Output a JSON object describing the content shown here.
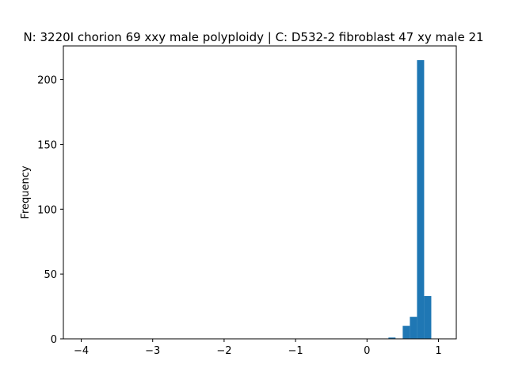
{
  "chart_data": {
    "type": "histogram",
    "title": "N: 3220I chorion 69 xxy male polyploidy | C: D532-2 fibroblast 47 xy male 21",
    "xlabel": "",
    "ylabel": "Frequency",
    "xlim": [
      -4.25,
      1.25
    ],
    "ylim": [
      0,
      226
    ],
    "xticks": [
      -4,
      -3,
      -2,
      -1,
      0,
      1
    ],
    "xtick_labels": [
      "−4",
      "−3",
      "−2",
      "−1",
      "0",
      "1"
    ],
    "yticks": [
      0,
      50,
      100,
      150,
      200
    ],
    "ytick_labels": [
      "0",
      "50",
      "100",
      "150",
      "200"
    ],
    "grid": false,
    "bar_color": "#1f77b4",
    "bins": [
      {
        "x0": 0.3,
        "x1": 0.4,
        "count": 1
      },
      {
        "x0": 0.5,
        "x1": 0.6,
        "count": 10
      },
      {
        "x0": 0.6,
        "x1": 0.7,
        "count": 17
      },
      {
        "x0": 0.7,
        "x1": 0.8,
        "count": 215
      },
      {
        "x0": 0.8,
        "x1": 0.9,
        "count": 33
      }
    ]
  }
}
